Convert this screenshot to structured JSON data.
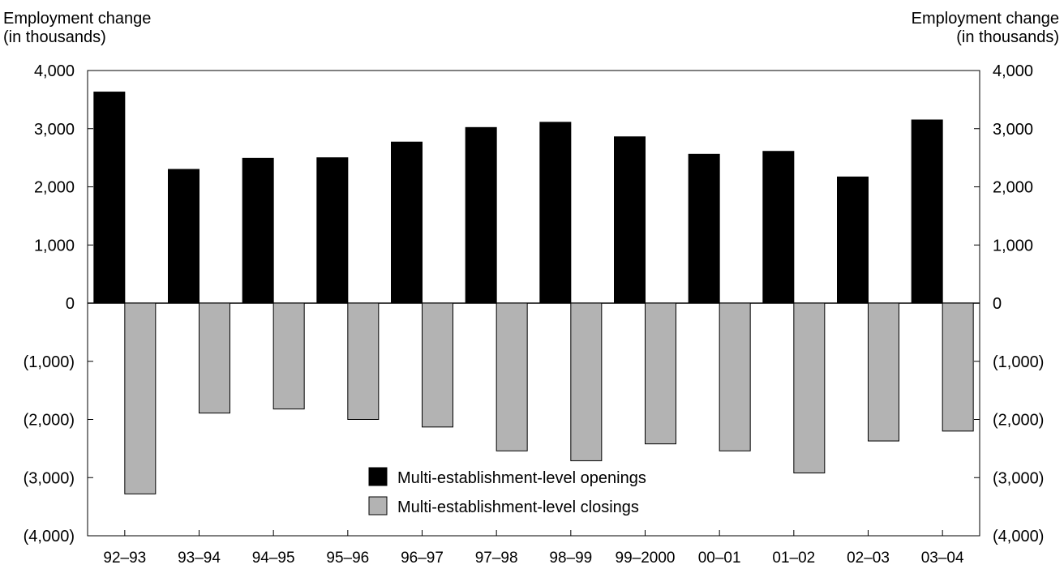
{
  "chart_data": {
    "type": "bar",
    "title": "",
    "ylabel_left": [
      "Employment change",
      "(in thousands)"
    ],
    "ylabel_right": [
      "Employment change",
      "(in thousands)"
    ],
    "xlabel": "",
    "ylim": [
      -4000,
      4000
    ],
    "yticks": [
      4000,
      3000,
      2000,
      1000,
      0,
      -1000,
      -2000,
      -3000,
      -4000
    ],
    "ytick_labels": [
      "4,000",
      "3,000",
      "2,000",
      "1,000",
      "0",
      "(1,000)",
      "(2,000)",
      "(3,000)",
      "(4,000)"
    ],
    "grid": false,
    "legend_position": "bottom-center",
    "categories": [
      "92–93",
      "93–94",
      "94–95",
      "95–96",
      "96–97",
      "97–98",
      "98–99",
      "99–2000",
      "00–01",
      "01–02",
      "02–03",
      "03–04"
    ],
    "series": [
      {
        "name": "Multi-establishment-level openings",
        "color": "#000000",
        "values": [
          3630,
          2300,
          2490,
          2500,
          2770,
          3020,
          3110,
          2860,
          2560,
          2610,
          2170,
          3150
        ]
      },
      {
        "name": "Multi-establishment-level closings",
        "color": "#b3b3b3",
        "values": [
          -3280,
          -1890,
          -1820,
          -2000,
          -2130,
          -2540,
          -2710,
          -2420,
          -2540,
          -2920,
          -2370,
          -2200
        ]
      }
    ]
  }
}
